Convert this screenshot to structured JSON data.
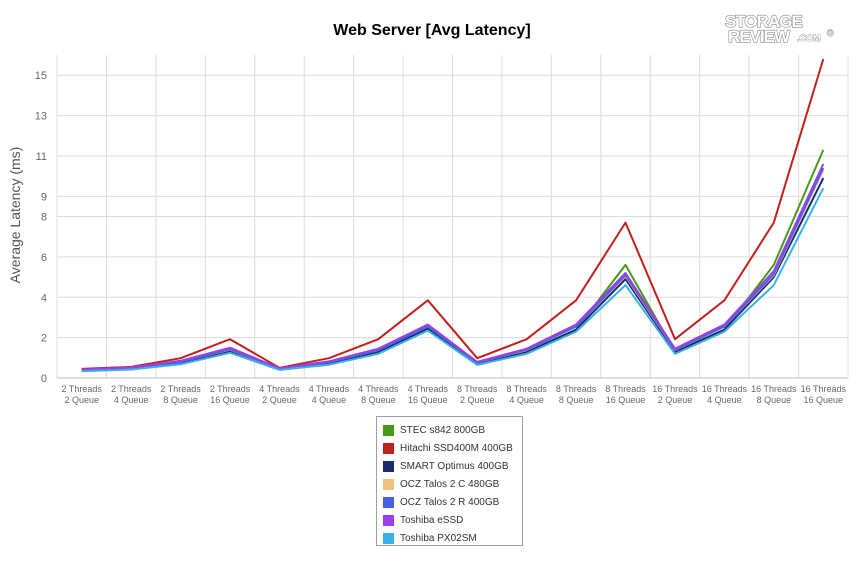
{
  "chart_data": {
    "type": "line",
    "title": "Web Server [Avg Latency]",
    "xlabel": "",
    "ylabel": "Average Latency (ms)",
    "ylim": [
      0,
      16
    ],
    "yticks": [
      0,
      2,
      4,
      6,
      8,
      9,
      11,
      13,
      15
    ],
    "grid": true,
    "legend_position": "bottom",
    "categories": [
      [
        "2 Threads",
        "2 Queue"
      ],
      [
        "2 Threads",
        "4 Queue"
      ],
      [
        "2 Threads",
        "8 Queue"
      ],
      [
        "2 Threads",
        "16 Queue"
      ],
      [
        "4 Threads",
        "2 Queue"
      ],
      [
        "4 Threads",
        "4 Queue"
      ],
      [
        "4 Threads",
        "8 Queue"
      ],
      [
        "4 Threads",
        "16 Queue"
      ],
      [
        "8 Threads",
        "2 Queue"
      ],
      [
        "8 Threads",
        "4 Queue"
      ],
      [
        "8 Threads",
        "8 Queue"
      ],
      [
        "8 Threads",
        "16 Queue"
      ],
      [
        "16 Threads",
        "2 Queue"
      ],
      [
        "16 Threads",
        "4 Queue"
      ],
      [
        "16 Threads",
        "8 Queue"
      ],
      [
        "16 Threads",
        "16 Queue"
      ]
    ],
    "series": [
      {
        "name": "STEC s842 800GB",
        "color": "#4a9a1a",
        "values": [
          0.4,
          0.48,
          0.78,
          1.38,
          0.45,
          0.75,
          1.3,
          2.45,
          0.72,
          1.3,
          2.4,
          5.6,
          1.3,
          2.4,
          5.6,
          11.3
        ]
      },
      {
        "name": "Hitachi SSD400M 400GB",
        "color": "#c0211f",
        "values": [
          0.45,
          0.55,
          0.98,
          1.92,
          0.5,
          0.98,
          1.92,
          3.85,
          0.98,
          1.92,
          3.85,
          7.7,
          1.92,
          3.85,
          7.7,
          15.8
        ]
      },
      {
        "name": "SMART Optimus 400GB",
        "color": "#1a2a6e",
        "values": [
          0.38,
          0.47,
          0.76,
          1.33,
          0.44,
          0.73,
          1.3,
          2.45,
          0.73,
          1.3,
          2.4,
          4.9,
          1.3,
          2.4,
          5.0,
          9.9
        ]
      },
      {
        "name": "OCZ Talos 2 C 480GB",
        "color": "#f0c080",
        "values": [
          0.4,
          0.5,
          0.8,
          1.4,
          0.46,
          0.78,
          1.38,
          2.55,
          0.76,
          1.38,
          2.55,
          5.05,
          1.38,
          2.55,
          5.1,
          10.3
        ]
      },
      {
        "name": "OCZ Talos 2 R 400GB",
        "color": "#4a60e0",
        "values": [
          0.41,
          0.5,
          0.8,
          1.42,
          0.46,
          0.78,
          1.38,
          2.55,
          0.76,
          1.4,
          2.55,
          5.1,
          1.4,
          2.55,
          5.15,
          10.4
        ]
      },
      {
        "name": "Toshiba eSSD",
        "color": "#9a40e8",
        "values": [
          0.42,
          0.52,
          0.85,
          1.5,
          0.48,
          0.82,
          1.45,
          2.65,
          0.8,
          1.45,
          2.65,
          5.2,
          1.45,
          2.65,
          5.3,
          10.6
        ]
      },
      {
        "name": "Toshiba PX02SM",
        "color": "#3ab0e8",
        "values": [
          0.33,
          0.42,
          0.68,
          1.25,
          0.4,
          0.66,
          1.2,
          2.35,
          0.65,
          1.2,
          2.3,
          4.6,
          1.2,
          2.3,
          4.6,
          9.4
        ]
      }
    ]
  },
  "logo": {
    "line1": "STORAGE",
    "line2": "REVIEW",
    "suffix": ".COM",
    "mark": "®"
  }
}
